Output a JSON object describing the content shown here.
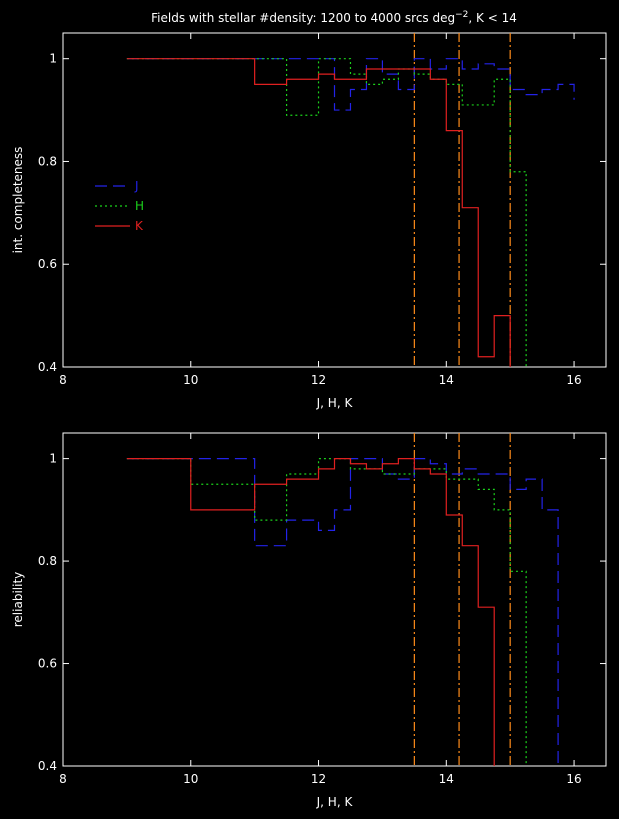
{
  "title_prefix": "Fields with stellar #density: 1200 to 4000 srcs deg",
  "title_exp": "−2",
  "title_suffix": ", K < 14",
  "colors": {
    "J": "#2323e8",
    "H": "#1bd11b",
    "K": "#e02020",
    "limit": "#ff8c1a",
    "axis": "#ffffff"
  },
  "chart_data": [
    {
      "type": "line",
      "step": true,
      "xlabel": "J, H, K",
      "ylabel": "int. completeness",
      "xlim": [
        8,
        16.5
      ],
      "ylim": [
        0.4,
        1.05
      ],
      "xticks": [
        8,
        10,
        12,
        14,
        16
      ],
      "yticks": [
        0.4,
        0.6,
        0.8,
        1
      ],
      "vlines": [
        13.5,
        14.2,
        15.0
      ],
      "legend": "left",
      "series": [
        {
          "name": "J",
          "style": "dashed",
          "x": [
            9,
            11,
            12.25,
            12.5,
            12.75,
            13,
            13.25,
            13.5,
            13.75,
            14,
            14.25,
            14.5,
            14.75,
            15,
            15.25,
            15.5,
            15.75,
            16
          ],
          "y": [
            1.0,
            1.0,
            0.9,
            0.94,
            1.0,
            0.97,
            0.94,
            1.0,
            0.98,
            1.0,
            0.98,
            0.99,
            0.98,
            0.94,
            0.93,
            0.94,
            0.95,
            0.92
          ]
        },
        {
          "name": "H",
          "style": "dotted",
          "x": [
            9,
            11,
            11.5,
            12,
            12.5,
            12.75,
            13,
            13.25,
            13.5,
            13.75,
            14,
            14.25,
            14.75,
            15,
            15.25
          ],
          "y": [
            1.0,
            1.0,
            0.89,
            1.0,
            0.97,
            0.95,
            0.96,
            0.98,
            0.97,
            0.96,
            0.95,
            0.91,
            0.96,
            0.78,
            0.4
          ]
        },
        {
          "name": "K",
          "style": "solid",
          "x": [
            9,
            11,
            11.5,
            12,
            12.25,
            12.75,
            13,
            13.5,
            13.75,
            14,
            14.25,
            14.5,
            14.75,
            15
          ],
          "y": [
            1.0,
            0.95,
            0.96,
            0.97,
            0.96,
            0.98,
            0.98,
            0.98,
            0.96,
            0.86,
            0.71,
            0.42,
            0.5,
            0.4
          ]
        }
      ]
    },
    {
      "type": "line",
      "step": true,
      "xlabel": "J, H, K",
      "ylabel": "reliability",
      "xlim": [
        8,
        16.5
      ],
      "ylim": [
        0.4,
        1.05
      ],
      "xticks": [
        8,
        10,
        12,
        14,
        16
      ],
      "yticks": [
        0.4,
        0.6,
        0.8,
        1
      ],
      "vlines": [
        13.5,
        14.2,
        15.0
      ],
      "series": [
        {
          "name": "J",
          "style": "dashed",
          "x": [
            9,
            11,
            11.5,
            12,
            12.25,
            12.5,
            13,
            13.25,
            13.5,
            13.75,
            14,
            14.25,
            14.5,
            14.75,
            15,
            15.25,
            15.5,
            15.75
          ],
          "y": [
            1.0,
            0.83,
            0.88,
            0.86,
            0.9,
            1.0,
            0.97,
            0.96,
            1.0,
            0.99,
            0.97,
            0.98,
            0.97,
            0.97,
            0.94,
            0.96,
            0.9,
            0.4
          ]
        },
        {
          "name": "H",
          "style": "dotted",
          "x": [
            9,
            10,
            11,
            11.5,
            12,
            12.5,
            13,
            13.5,
            14,
            14.5,
            14.75,
            15,
            15.25
          ],
          "y": [
            1.0,
            0.95,
            0.88,
            0.97,
            1.0,
            0.98,
            0.97,
            0.98,
            0.96,
            0.94,
            0.9,
            0.78,
            0.4
          ]
        },
        {
          "name": "K",
          "style": "solid",
          "x": [
            9,
            10,
            11,
            11.5,
            12,
            12.25,
            12.5,
            12.75,
            13,
            13.25,
            13.5,
            13.75,
            14,
            14.25,
            14.5,
            14.75
          ],
          "y": [
            1.0,
            0.9,
            0.95,
            0.96,
            0.98,
            1.0,
            0.99,
            0.98,
            0.99,
            1.0,
            0.98,
            0.97,
            0.89,
            0.83,
            0.71,
            0.4
          ]
        }
      ]
    }
  ]
}
